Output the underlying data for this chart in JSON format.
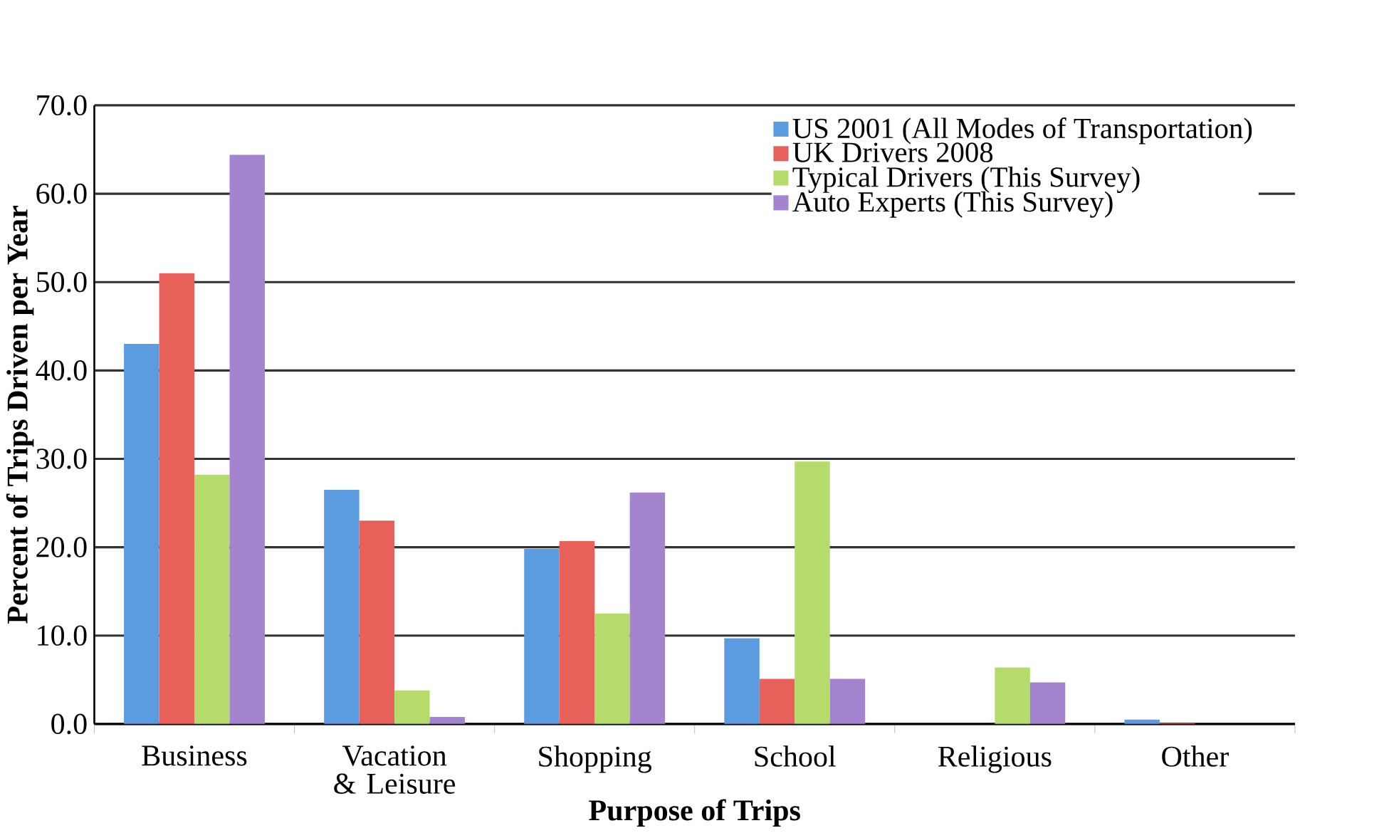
{
  "chart_data": {
    "type": "bar",
    "xlabel": "Purpose of Trips",
    "ylabel": "Percent of Trips Driven per Year",
    "categories": [
      "Business",
      "Vacation & Leisure",
      "Shopping",
      "School",
      "Religious",
      "Other"
    ],
    "series": [
      {
        "name": "US 2001 (All Modes of Transportation)",
        "color": "#5b9be0",
        "values": [
          43.0,
          26.5,
          19.8,
          9.7,
          null,
          0.5
        ]
      },
      {
        "name": "UK Drivers 2008",
        "color": "#e8605a",
        "values": [
          51.0,
          23.0,
          20.7,
          5.1,
          null,
          0.1
        ]
      },
      {
        "name": "Typical Drivers (This Survey)",
        "color": "#b5dc6a",
        "values": [
          28.2,
          3.8,
          12.5,
          29.7,
          6.4,
          null
        ]
      },
      {
        "name": "Auto Experts (This Survey)",
        "color": "#a584cf",
        "values": [
          64.4,
          0.8,
          26.2,
          5.1,
          4.7,
          null
        ]
      }
    ],
    "ylim": [
      0,
      70
    ],
    "yticks": [
      {
        "value": 0,
        "label": "0.0"
      },
      {
        "value": 10,
        "label": "10.0"
      },
      {
        "value": 20,
        "label": "20.0"
      },
      {
        "value": 30,
        "label": "30.0"
      },
      {
        "value": 40,
        "label": "40.0"
      },
      {
        "value": 50,
        "label": "50.0"
      },
      {
        "value": 60,
        "label": "60.0"
      },
      {
        "value": 70,
        "label": "70.0"
      }
    ],
    "grid": "y",
    "legend": "top right"
  }
}
